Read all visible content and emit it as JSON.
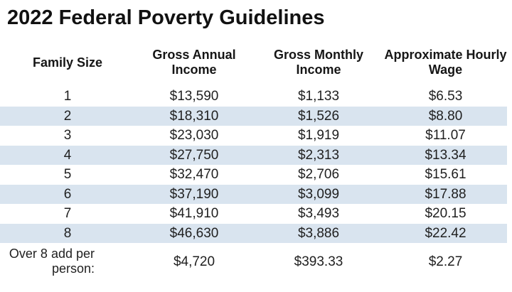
{
  "title": "2022 Federal Poverty Guidelines",
  "colors": {
    "stripe": "#d9e4ef",
    "text": "#1f1f1f",
    "title": "#111111",
    "background": "#ffffff"
  },
  "table": {
    "columns": [
      "Family Size",
      "Gross Annual Income",
      "Gross Monthly Income",
      "Approximate Hourly Wage"
    ],
    "rows": [
      [
        "1",
        "$13,590",
        "$1,133",
        "$6.53"
      ],
      [
        "2",
        "$18,310",
        "$1,526",
        "$8.80"
      ],
      [
        "3",
        "$23,030",
        "$1,919",
        "$11.07"
      ],
      [
        "4",
        "$27,750",
        "$2,313",
        "$13.34"
      ],
      [
        "5",
        "$32,470",
        "$2,706",
        "$15.61"
      ],
      [
        "6",
        "$37,190",
        "$3,099",
        "$17.88"
      ],
      [
        "7",
        "$41,910",
        "$3,493",
        "$20.15"
      ],
      [
        "8",
        "$46,630",
        "$3,886",
        "$22.42"
      ],
      [
        "Over 8 add per person:",
        "$4,720",
        "$393.33",
        "$2.27"
      ]
    ]
  },
  "chart_data": {
    "type": "table",
    "title": "2022 Federal Poverty Guidelines",
    "columns": [
      "Family Size",
      "Gross Annual Income",
      "Gross Monthly Income",
      "Approximate Hourly Wage"
    ],
    "rows": [
      {
        "family_size": "1",
        "gross_annual_income": 13590,
        "gross_monthly_income": 1133,
        "approximate_hourly_wage": 6.53
      },
      {
        "family_size": "2",
        "gross_annual_income": 18310,
        "gross_monthly_income": 1526,
        "approximate_hourly_wage": 8.8
      },
      {
        "family_size": "3",
        "gross_annual_income": 23030,
        "gross_monthly_income": 1919,
        "approximate_hourly_wage": 11.07
      },
      {
        "family_size": "4",
        "gross_annual_income": 27750,
        "gross_monthly_income": 2313,
        "approximate_hourly_wage": 13.34
      },
      {
        "family_size": "5",
        "gross_annual_income": 32470,
        "gross_monthly_income": 2706,
        "approximate_hourly_wage": 15.61
      },
      {
        "family_size": "6",
        "gross_annual_income": 37190,
        "gross_monthly_income": 3099,
        "approximate_hourly_wage": 17.88
      },
      {
        "family_size": "7",
        "gross_annual_income": 41910,
        "gross_monthly_income": 3493,
        "approximate_hourly_wage": 20.15
      },
      {
        "family_size": "8",
        "gross_annual_income": 46630,
        "gross_monthly_income": 3886,
        "approximate_hourly_wage": 22.42
      },
      {
        "family_size": "Over 8 add per person:",
        "gross_annual_income": 4720,
        "gross_monthly_income": 393.33,
        "approximate_hourly_wage": 2.27
      }
    ],
    "layout_hints": {
      "striped_rows": [
        2,
        4,
        6,
        8
      ],
      "stripe_color": "#d9e4ef",
      "alignment": "center"
    }
  }
}
